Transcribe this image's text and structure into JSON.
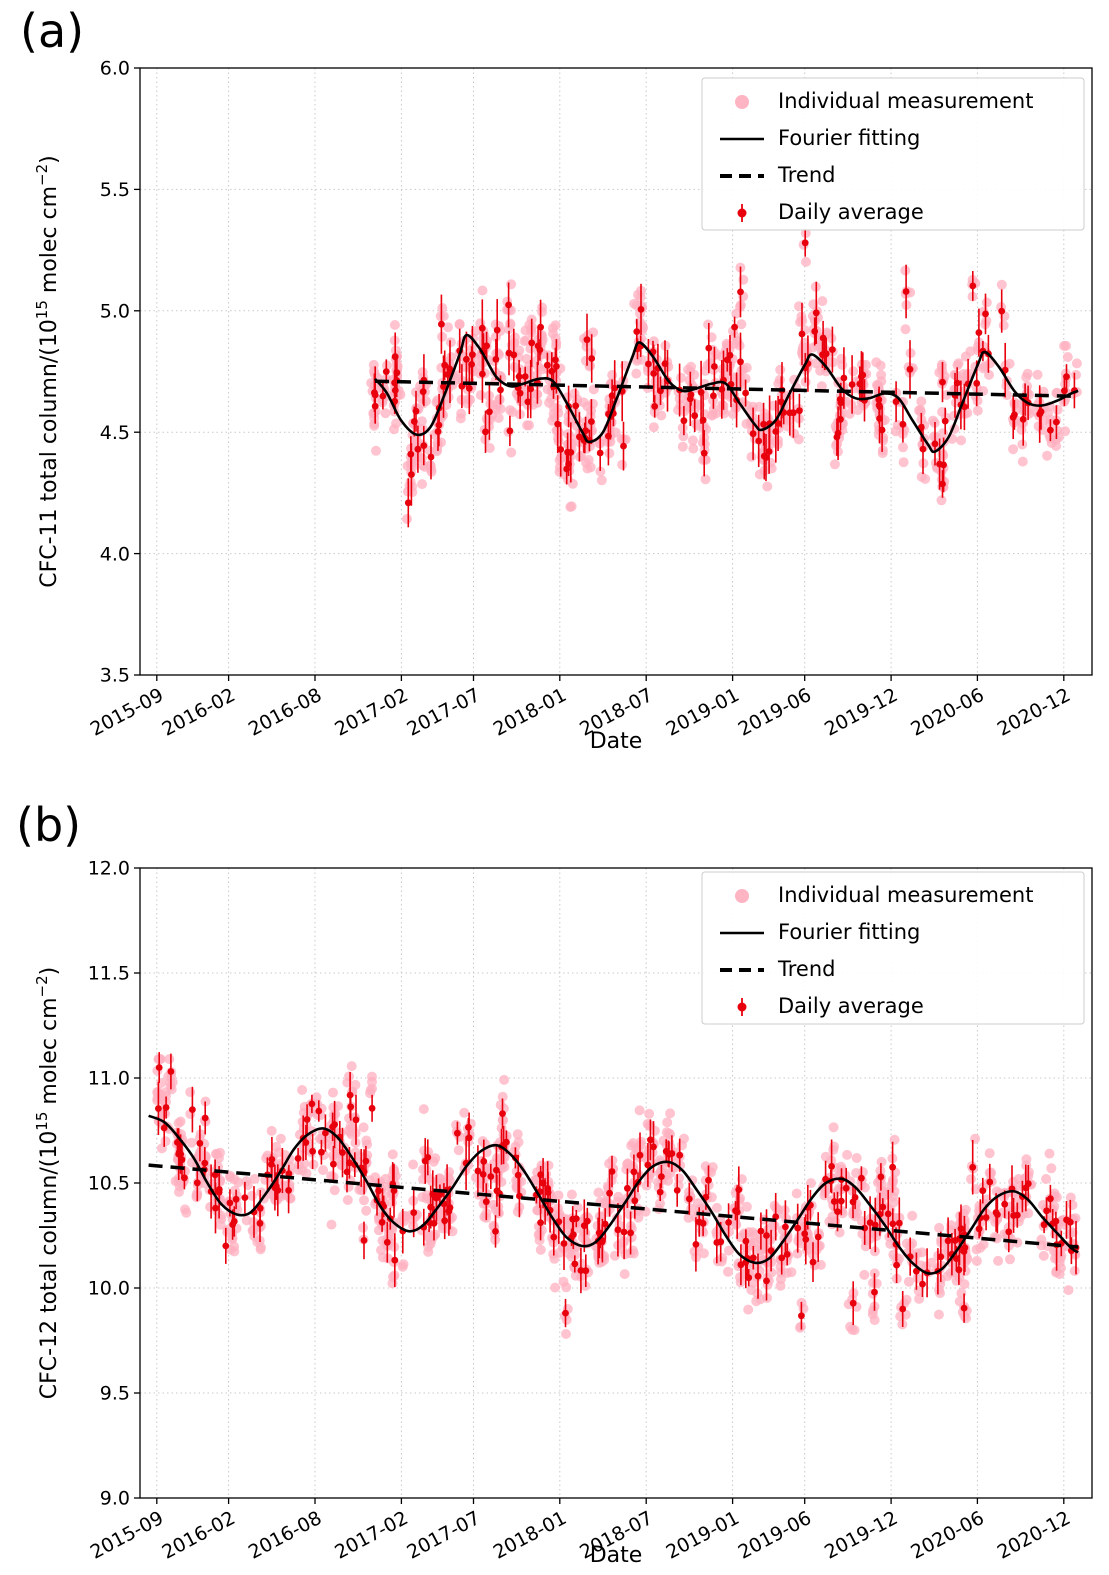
{
  "panel_labels": {
    "a": "(a)",
    "b": "(b)"
  },
  "colors": {
    "individual": "#ffb0c0",
    "daily": "#e8000d",
    "fit": "#000000",
    "trend": "#000000",
    "grid": "#c9c9c9",
    "spine": "#000000",
    "legend_border": "#cccccc"
  },
  "chart_data": [
    {
      "id": "cfc11",
      "type": "scatter",
      "title": "",
      "xlabel": "Date",
      "ylabel_text": "CFC-11 total column/(10^15 molec cm^-2)",
      "ylabel_parts": {
        "prefix": "CFC-11 total column/(10",
        "sup1": "15",
        "mid": " molec cm",
        "sup2": "−2",
        "suffix": ")"
      },
      "ylim": [
        3.5,
        6.0
      ],
      "xlim_time": [
        2015.57,
        2021.08
      ],
      "y_ticks": [
        3.5,
        4.0,
        4.5,
        5.0,
        5.5,
        6.0
      ],
      "x_ticks": [
        {
          "time": 2015.667,
          "label": "2015-09"
        },
        {
          "time": 2016.083,
          "label": "2016-02"
        },
        {
          "time": 2016.583,
          "label": "2016-08"
        },
        {
          "time": 2017.083,
          "label": "2017-02"
        },
        {
          "time": 2017.5,
          "label": "2017-07"
        },
        {
          "time": 2018.0,
          "label": "2018-01"
        },
        {
          "time": 2018.5,
          "label": "2018-07"
        },
        {
          "time": 2019.0,
          "label": "2019-01"
        },
        {
          "time": 2019.417,
          "label": "2019-06"
        },
        {
          "time": 2019.917,
          "label": "2019-12"
        },
        {
          "time": 2020.417,
          "label": "2020-06"
        },
        {
          "time": 2020.917,
          "label": "2020-12"
        }
      ],
      "legend": [
        {
          "marker": "dot",
          "label": "Individual measurement"
        },
        {
          "marker": "line",
          "label": "Fourier fitting"
        },
        {
          "marker": "dash",
          "label": "Trend"
        },
        {
          "marker": "errdot",
          "label": "Daily average"
        }
      ],
      "fourier_fit": [
        [
          2016.93,
          4.72
        ],
        [
          2017.0,
          4.66
        ],
        [
          2017.08,
          4.55
        ],
        [
          2017.17,
          4.49
        ],
        [
          2017.25,
          4.52
        ],
        [
          2017.33,
          4.65
        ],
        [
          2017.42,
          4.82
        ],
        [
          2017.46,
          4.9
        ],
        [
          2017.54,
          4.84
        ],
        [
          2017.63,
          4.73
        ],
        [
          2017.71,
          4.69
        ],
        [
          2017.79,
          4.7
        ],
        [
          2017.88,
          4.72
        ],
        [
          2017.96,
          4.71
        ],
        [
          2018.04,
          4.62
        ],
        [
          2018.13,
          4.5
        ],
        [
          2018.17,
          4.46
        ],
        [
          2018.25,
          4.5
        ],
        [
          2018.33,
          4.64
        ],
        [
          2018.42,
          4.81
        ],
        [
          2018.46,
          4.87
        ],
        [
          2018.54,
          4.81
        ],
        [
          2018.63,
          4.71
        ],
        [
          2018.71,
          4.67
        ],
        [
          2018.79,
          4.68
        ],
        [
          2018.88,
          4.7
        ],
        [
          2018.96,
          4.7
        ],
        [
          2019.04,
          4.62
        ],
        [
          2019.13,
          4.53
        ],
        [
          2019.17,
          4.51
        ],
        [
          2019.25,
          4.55
        ],
        [
          2019.33,
          4.66
        ],
        [
          2019.42,
          4.78
        ],
        [
          2019.46,
          4.82
        ],
        [
          2019.54,
          4.77
        ],
        [
          2019.63,
          4.68
        ],
        [
          2019.71,
          4.64
        ],
        [
          2019.79,
          4.64
        ],
        [
          2019.88,
          4.66
        ],
        [
          2019.96,
          4.64
        ],
        [
          2020.04,
          4.55
        ],
        [
          2020.13,
          4.45
        ],
        [
          2020.17,
          4.42
        ],
        [
          2020.25,
          4.48
        ],
        [
          2020.33,
          4.62
        ],
        [
          2020.42,
          4.78
        ],
        [
          2020.46,
          4.83
        ],
        [
          2020.54,
          4.77
        ],
        [
          2020.63,
          4.67
        ],
        [
          2020.71,
          4.62
        ],
        [
          2020.79,
          4.61
        ],
        [
          2020.88,
          4.63
        ],
        [
          2020.96,
          4.66
        ],
        [
          2021.0,
          4.67
        ]
      ],
      "trend": [
        [
          2016.93,
          4.71
        ],
        [
          2021.0,
          4.648
        ]
      ],
      "scatter_model": {
        "seed": 42,
        "t_start": 2016.89,
        "t_end": 2020.99,
        "days_per_month": [
          2,
          6
        ],
        "indiv_per_day": [
          3,
          8
        ],
        "daily_sd": 0.075,
        "cluster_sd": 0.05,
        "indiv_sd": 0.07,
        "err_range": [
          0.04,
          0.13
        ],
        "outlier_prob": 0.07,
        "outlier_mag": 0.28,
        "clip": [
          4.08,
          5.28
        ]
      }
    },
    {
      "id": "cfc12",
      "type": "scatter",
      "title": "",
      "xlabel": "Date",
      "ylabel_text": "CFC-12 total column/(10^15 molec cm^-2)",
      "ylabel_parts": {
        "prefix": "CFC-12 total column/(10",
        "sup1": "15",
        "mid": " molec cm",
        "sup2": "−2",
        "suffix": ")"
      },
      "ylim": [
        9.0,
        12.0
      ],
      "xlim_time": [
        2015.57,
        2021.08
      ],
      "y_ticks": [
        9.0,
        9.5,
        10.0,
        10.5,
        11.0,
        11.5,
        12.0
      ],
      "x_ticks": [
        {
          "time": 2015.667,
          "label": "2015-09"
        },
        {
          "time": 2016.083,
          "label": "2016-02"
        },
        {
          "time": 2016.583,
          "label": "2016-08"
        },
        {
          "time": 2017.083,
          "label": "2017-02"
        },
        {
          "time": 2017.5,
          "label": "2017-07"
        },
        {
          "time": 2018.0,
          "label": "2018-01"
        },
        {
          "time": 2018.5,
          "label": "2018-07"
        },
        {
          "time": 2019.0,
          "label": "2019-01"
        },
        {
          "time": 2019.417,
          "label": "2019-06"
        },
        {
          "time": 2019.917,
          "label": "2019-12"
        },
        {
          "time": 2020.417,
          "label": "2020-06"
        },
        {
          "time": 2020.917,
          "label": "2020-12"
        }
      ],
      "legend": [
        {
          "marker": "dot",
          "label": "Individual measurement"
        },
        {
          "marker": "line",
          "label": "Fourier fitting"
        },
        {
          "marker": "dash",
          "label": "Trend"
        },
        {
          "marker": "errdot",
          "label": "Daily average"
        }
      ],
      "fourier_fit": [
        [
          2015.62,
          10.82
        ],
        [
          2015.71,
          10.79
        ],
        [
          2015.79,
          10.72
        ],
        [
          2015.88,
          10.62
        ],
        [
          2015.96,
          10.5
        ],
        [
          2016.04,
          10.4
        ],
        [
          2016.13,
          10.35
        ],
        [
          2016.21,
          10.36
        ],
        [
          2016.29,
          10.44
        ],
        [
          2016.38,
          10.55
        ],
        [
          2016.46,
          10.66
        ],
        [
          2016.54,
          10.73
        ],
        [
          2016.63,
          10.76
        ],
        [
          2016.71,
          10.72
        ],
        [
          2016.79,
          10.63
        ],
        [
          2016.88,
          10.51
        ],
        [
          2016.96,
          10.39
        ],
        [
          2017.04,
          10.31
        ],
        [
          2017.13,
          10.27
        ],
        [
          2017.21,
          10.3
        ],
        [
          2017.29,
          10.38
        ],
        [
          2017.38,
          10.48
        ],
        [
          2017.46,
          10.58
        ],
        [
          2017.54,
          10.65
        ],
        [
          2017.63,
          10.68
        ],
        [
          2017.71,
          10.64
        ],
        [
          2017.79,
          10.56
        ],
        [
          2017.88,
          10.44
        ],
        [
          2017.96,
          10.33
        ],
        [
          2018.04,
          10.24
        ],
        [
          2018.13,
          10.2
        ],
        [
          2018.21,
          10.22
        ],
        [
          2018.29,
          10.3
        ],
        [
          2018.38,
          10.41
        ],
        [
          2018.46,
          10.51
        ],
        [
          2018.54,
          10.58
        ],
        [
          2018.63,
          10.6
        ],
        [
          2018.71,
          10.56
        ],
        [
          2018.79,
          10.47
        ],
        [
          2018.88,
          10.36
        ],
        [
          2018.96,
          10.25
        ],
        [
          2019.04,
          10.16
        ],
        [
          2019.13,
          10.12
        ],
        [
          2019.21,
          10.14
        ],
        [
          2019.29,
          10.22
        ],
        [
          2019.38,
          10.33
        ],
        [
          2019.46,
          10.43
        ],
        [
          2019.54,
          10.5
        ],
        [
          2019.63,
          10.52
        ],
        [
          2019.71,
          10.48
        ],
        [
          2019.79,
          10.4
        ],
        [
          2019.88,
          10.3
        ],
        [
          2019.96,
          10.2
        ],
        [
          2020.04,
          10.12
        ],
        [
          2020.13,
          10.07
        ],
        [
          2020.21,
          10.09
        ],
        [
          2020.29,
          10.17
        ],
        [
          2020.38,
          10.28
        ],
        [
          2020.46,
          10.38
        ],
        [
          2020.54,
          10.44
        ],
        [
          2020.63,
          10.46
        ],
        [
          2020.71,
          10.42
        ],
        [
          2020.79,
          10.34
        ],
        [
          2020.88,
          10.26
        ],
        [
          2020.96,
          10.19
        ],
        [
          2021.0,
          10.17
        ]
      ],
      "trend": [
        [
          2015.62,
          10.585
        ],
        [
          2021.0,
          10.195
        ]
      ],
      "scatter_model": {
        "seed": 7,
        "t_start": 2015.63,
        "t_end": 2020.99,
        "days_per_month": [
          2,
          6
        ],
        "indiv_per_day": [
          3,
          8
        ],
        "daily_sd": 0.08,
        "cluster_sd": 0.05,
        "indiv_sd": 0.08,
        "err_range": [
          0.04,
          0.13
        ],
        "outlier_prob": 0.06,
        "outlier_mag": 0.3,
        "clip": [
          9.68,
          11.05
        ]
      }
    }
  ]
}
